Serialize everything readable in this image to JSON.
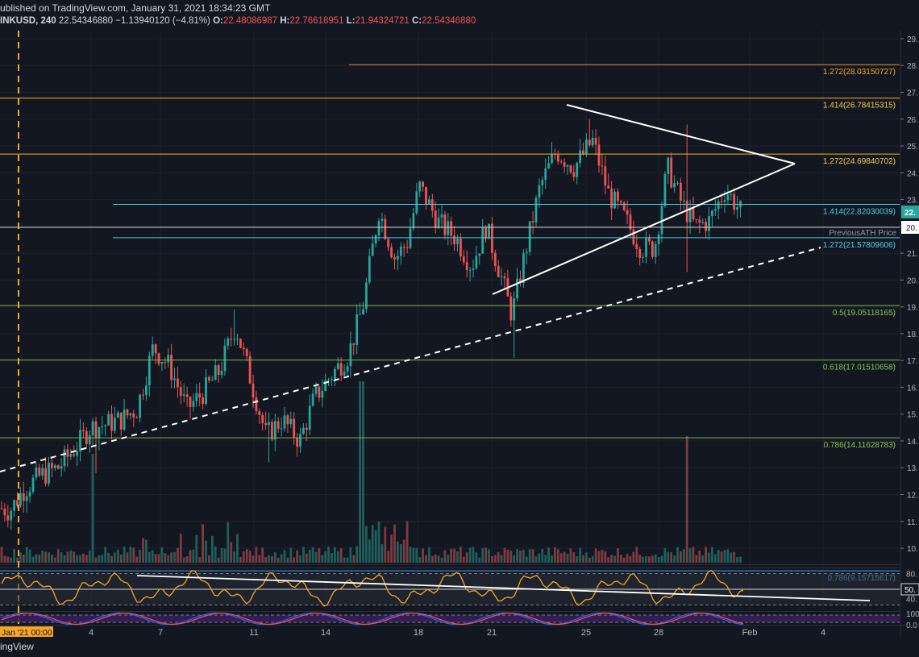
{
  "header": {
    "published": "ublished on TradingView.com, January 31, 2021 18:34:23 GMT",
    "symbol": "INKUSD, 240",
    "last": "22.54346880",
    "change": "−1.13940120 (−4.81%)",
    "open_label": "O:",
    "open": "22.48086987",
    "high_label": "H:",
    "high": "22.76618951",
    "low_label": "L:",
    "low": "21.94324721",
    "close_label": "C:",
    "close": "22.54346880"
  },
  "footer": {
    "brand": "ingView"
  },
  "colors": {
    "background": "#131722",
    "up": "#26a69a",
    "down": "#ef5350",
    "fib_orange": "#f5a623",
    "fib_cyan": "#4dd0e1",
    "fib_green": "#8bc34a",
    "rsi": "#f5a623",
    "stoch_k": "#2962ff",
    "stoch_d": "#ef5350"
  },
  "chart_data": {
    "type": "candlestick",
    "price_axis_ticks": [
      "29.",
      "28.",
      "27.",
      "26.",
      "25.",
      "24.",
      "23.",
      "22.",
      "21.",
      "20.",
      "19.",
      "18.",
      "17.",
      "16.",
      "15.",
      "14.",
      "13.",
      "12.",
      "11.",
      "10."
    ],
    "price_axis_ticks_values": [
      29,
      28,
      27,
      26,
      25,
      24,
      23,
      22,
      21,
      20,
      19,
      18,
      17,
      16,
      15,
      14,
      13,
      12,
      11,
      10
    ],
    "current_price_label": "22.",
    "current_price": 22.54,
    "previous_ath_value": 20.8,
    "ylim": [
      9.4,
      29.3
    ],
    "date_ticks": [
      "4",
      "7",
      "11",
      "14",
      "18",
      "21",
      "25",
      "28",
      "Feb",
      "4"
    ],
    "date_cursor_label": "Jan '21  00:00",
    "fib_levels": [
      {
        "label": "1.272(28.03150727)",
        "value": 28.03150727,
        "color": "orange"
      },
      {
        "label": "1.414(26.78415315)",
        "value": 26.78415315,
        "color": "gold"
      },
      {
        "label": "1.272(24.69840702)",
        "value": 24.69840702,
        "color": "gold"
      },
      {
        "label": "1.414(22.82030039)",
        "value": 22.82030039,
        "color": "cyan"
      },
      {
        "label": "1.272(21.57809606)",
        "value": 21.57809606,
        "color": "cyan"
      },
      {
        "label": "PreviousATH Price",
        "value": 20.8,
        "color": "white"
      },
      {
        "label": "0.5(19.05118165)",
        "value": 19.05118165,
        "color": "green"
      },
      {
        "label": "0.618(17.01510658)",
        "value": 17.01510658,
        "color": "green"
      },
      {
        "label": "0.786(14.11628783)",
        "value": 14.11628783,
        "color": "green"
      },
      {
        "label": "0.786(9.15715617)",
        "value": 9.15715617,
        "color": "blue"
      }
    ],
    "anchors": [
      [
        0,
        11.5
      ],
      [
        12,
        11.4
      ],
      [
        30,
        12.2
      ],
      [
        50,
        12.7
      ],
      [
        72,
        13.0
      ],
      [
        95,
        13.8
      ],
      [
        112,
        14.5
      ],
      [
        130,
        14.6
      ],
      [
        150,
        14.8
      ],
      [
        170,
        15.2
      ],
      [
        190,
        17.5
      ],
      [
        210,
        16.8
      ],
      [
        232,
        15.2
      ],
      [
        252,
        15.8
      ],
      [
        272,
        16.6
      ],
      [
        292,
        18.3
      ],
      [
        310,
        16.4
      ],
      [
        330,
        14.2
      ],
      [
        350,
        14.8
      ],
      [
        372,
        14.0
      ],
      [
        390,
        15.6
      ],
      [
        412,
        16.5
      ],
      [
        432,
        17.2
      ],
      [
        450,
        19.0
      ],
      [
        470,
        22.6
      ],
      [
        490,
        20.8
      ],
      [
        505,
        21.4
      ],
      [
        520,
        23.5
      ],
      [
        545,
        22.1
      ],
      [
        565,
        21.6
      ],
      [
        585,
        20.5
      ],
      [
        603,
        22.0
      ],
      [
        620,
        20.3
      ],
      [
        635,
        18.7
      ],
      [
        652,
        21.1
      ],
      [
        670,
        23.5
      ],
      [
        690,
        24.8
      ],
      [
        712,
        24.2
      ],
      [
        735,
        25.2
      ],
      [
        755,
        23.2
      ],
      [
        775,
        22.3
      ],
      [
        795,
        21.2
      ],
      [
        812,
        21.2
      ],
      [
        828,
        24.2
      ],
      [
        845,
        22.9
      ],
      [
        862,
        22.0
      ],
      [
        880,
        22.2
      ],
      [
        900,
        23.4
      ],
      [
        920,
        22.5
      ]
    ],
    "rsi": {
      "levels": [
        80,
        50,
        20
      ],
      "tick_labels": [
        "80.",
        "50.",
        "40."
      ]
    },
    "stoch_rsi": {
      "levels": [
        100,
        80,
        20,
        0
      ],
      "tick_labels": [
        "100",
        "0.0"
      ]
    }
  }
}
